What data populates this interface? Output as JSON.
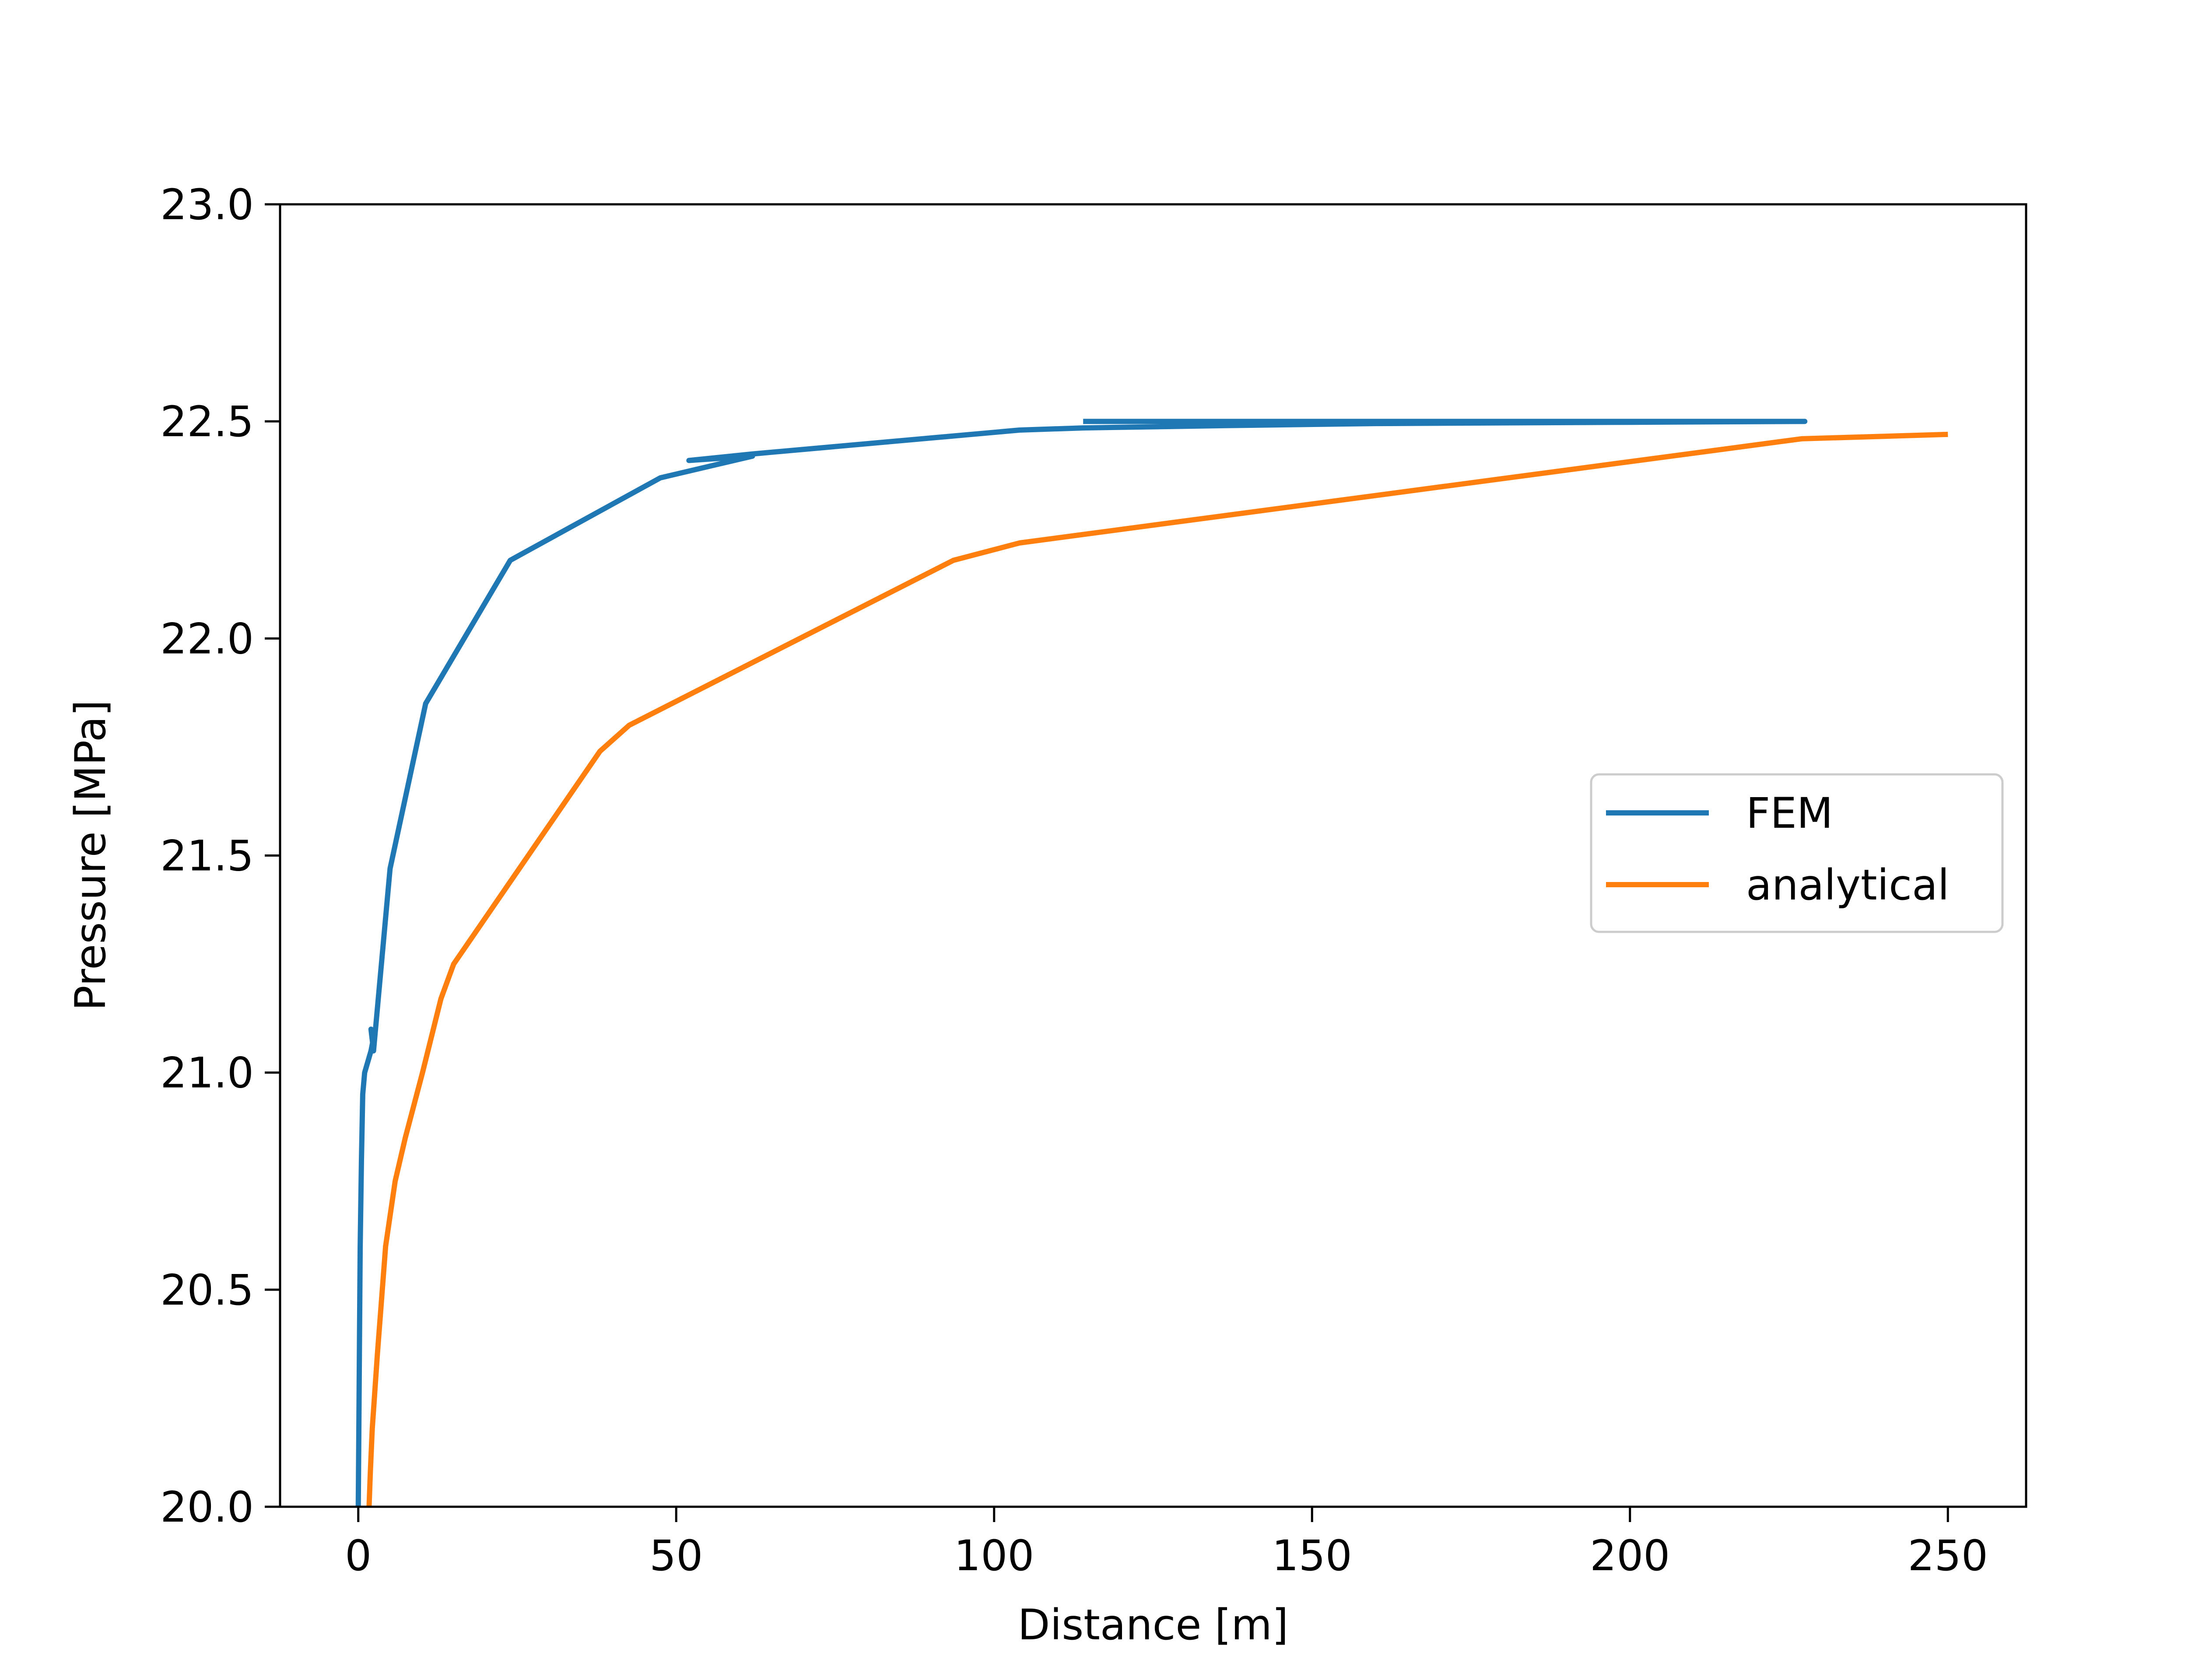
{
  "chart_data": {
    "type": "line",
    "title": "",
    "xlabel": "Distance [m]",
    "ylabel": "Pressure [MPa]",
    "xlim": [
      -12.3,
      262.3
    ],
    "ylim": [
      20.0,
      23.0
    ],
    "x_ticks": [
      0,
      50,
      100,
      150,
      200,
      250
    ],
    "y_ticks": [
      20.0,
      20.5,
      21.0,
      21.5,
      22.0,
      22.5,
      23.0
    ],
    "x_tick_labels": [
      "0",
      "50",
      "100",
      "150",
      "200",
      "250"
    ],
    "y_tick_labels": [
      "20.0",
      "20.5",
      "21.0",
      "21.5",
      "22.0",
      "22.5",
      "23.0"
    ],
    "grid": false,
    "legend_position": "center-right",
    "series": [
      {
        "name": "FEM",
        "color": "#1f77b4",
        "x": [
          0.0,
          0.1,
          0.2,
          0.3,
          0.5,
          0.7,
          1.0,
          1.4,
          2.0,
          2.4,
          2.0,
          2.4,
          5.0,
          10.6,
          23.9,
          47.5,
          62.0,
          52.0,
          62.0,
          104.0,
          114.0,
          135.0,
          160.0,
          200.0,
          227.5,
          114.0
        ],
        "y": [
          20.0,
          20.2,
          20.4,
          20.6,
          20.8,
          20.95,
          21.0,
          21.02,
          21.05,
          21.08,
          21.1,
          21.05,
          21.47,
          21.85,
          22.18,
          22.37,
          22.42,
          22.41,
          22.425,
          22.48,
          22.485,
          22.49,
          22.495,
          22.498,
          22.5,
          22.5
        ]
      },
      {
        "name": "analytical",
        "color": "#ff7f0e",
        "x": [
          1.7,
          1.9,
          2.2,
          3.0,
          4.3,
          5.8,
          7.4,
          10.1,
          13.0,
          15.0,
          38.0,
          42.6,
          93.6,
          104.0,
          227.0,
          250.0
        ],
        "y": [
          20.0,
          20.08,
          20.18,
          20.35,
          20.6,
          20.75,
          20.85,
          21.0,
          21.17,
          21.25,
          21.74,
          21.8,
          22.18,
          22.22,
          22.46,
          22.47
        ]
      }
    ]
  }
}
